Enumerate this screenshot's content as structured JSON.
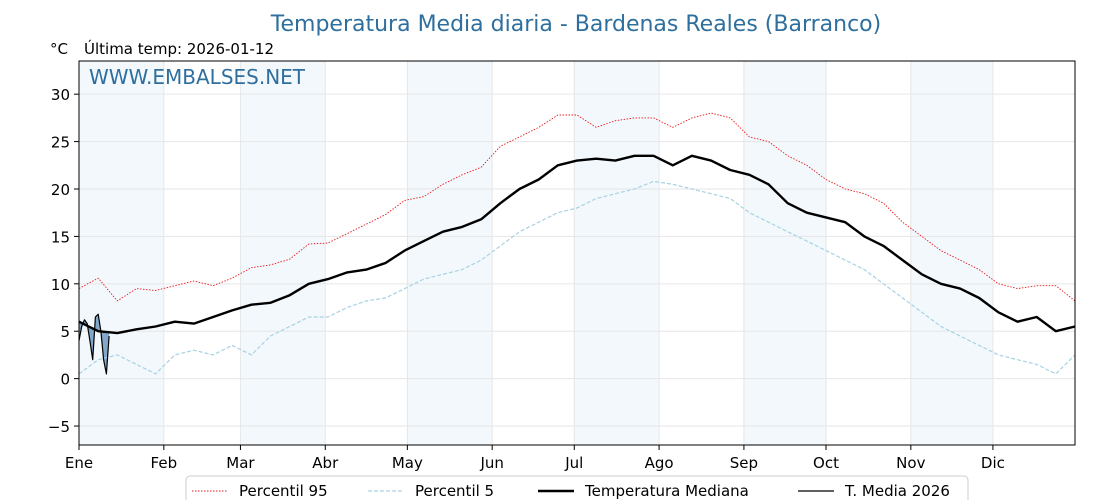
{
  "chart_data": {
    "type": "line",
    "title": "Temperatura Media diaria - Bardenas Reales (Barranco)",
    "unit_label": "°C",
    "last_temp_label": "Última temp: 2026-01-12",
    "watermark": "WWW.EMBALSES.NET",
    "months": [
      "Ene",
      "Feb",
      "Mar",
      "Abr",
      "May",
      "Jun",
      "Jul",
      "Ago",
      "Sep",
      "Oct",
      "Nov",
      "Dic"
    ],
    "y_ticks": [
      -5,
      0,
      5,
      10,
      15,
      20,
      25,
      30
    ],
    "y_tick_labels": [
      "−5",
      "0",
      "5",
      "10",
      "15",
      "20",
      "25",
      "30"
    ],
    "ylim": [
      -7,
      33.5
    ],
    "xlim_days": [
      1,
      365
    ],
    "grid": true,
    "legend_position": "bottom",
    "series": [
      {
        "name": "Percentil 95",
        "color": "#e8191b",
        "style": "dotted",
        "points": [
          [
            1,
            9.5
          ],
          [
            8,
            10.6
          ],
          [
            15,
            8.2
          ],
          [
            22,
            9.5
          ],
          [
            29,
            9.3
          ],
          [
            36,
            9.8
          ],
          [
            43,
            10.3
          ],
          [
            50,
            9.8
          ],
          [
            57,
            10.6
          ],
          [
            64,
            11.7
          ],
          [
            71,
            12.0
          ],
          [
            78,
            12.6
          ],
          [
            85,
            14.2
          ],
          [
            92,
            14.3
          ],
          [
            99,
            15.3
          ],
          [
            106,
            16.3
          ],
          [
            113,
            17.3
          ],
          [
            120,
            18.8
          ],
          [
            127,
            19.2
          ],
          [
            134,
            20.5
          ],
          [
            141,
            21.5
          ],
          [
            148,
            22.3
          ],
          [
            155,
            24.5
          ],
          [
            162,
            25.5
          ],
          [
            169,
            26.5
          ],
          [
            176,
            27.8
          ],
          [
            183,
            27.8
          ],
          [
            190,
            26.5
          ],
          [
            197,
            27.2
          ],
          [
            204,
            27.5
          ],
          [
            211,
            27.5
          ],
          [
            218,
            26.5
          ],
          [
            225,
            27.5
          ],
          [
            232,
            28.0
          ],
          [
            239,
            27.5
          ],
          [
            246,
            25.5
          ],
          [
            253,
            25.0
          ],
          [
            260,
            23.5
          ],
          [
            267,
            22.5
          ],
          [
            274,
            21.0
          ],
          [
            281,
            20.0
          ],
          [
            288,
            19.5
          ],
          [
            295,
            18.5
          ],
          [
            302,
            16.5
          ],
          [
            309,
            15.0
          ],
          [
            316,
            13.5
          ],
          [
            323,
            12.5
          ],
          [
            330,
            11.5
          ],
          [
            337,
            10.0
          ],
          [
            344,
            9.5
          ],
          [
            351,
            9.8
          ],
          [
            358,
            9.8
          ],
          [
            365,
            8.2
          ]
        ]
      },
      {
        "name": "Percentil 5",
        "color": "#a8d2e3",
        "style": "dashed",
        "points": [
          [
            1,
            0.5
          ],
          [
            8,
            2.0
          ],
          [
            15,
            2.5
          ],
          [
            22,
            1.5
          ],
          [
            29,
            0.5
          ],
          [
            36,
            2.5
          ],
          [
            43,
            3.0
          ],
          [
            50,
            2.5
          ],
          [
            57,
            3.5
          ],
          [
            64,
            2.5
          ],
          [
            71,
            4.5
          ],
          [
            78,
            5.5
          ],
          [
            85,
            6.5
          ],
          [
            92,
            6.5
          ],
          [
            99,
            7.5
          ],
          [
            106,
            8.2
          ],
          [
            113,
            8.5
          ],
          [
            120,
            9.5
          ],
          [
            127,
            10.5
          ],
          [
            134,
            11.0
          ],
          [
            141,
            11.5
          ],
          [
            148,
            12.5
          ],
          [
            155,
            14.0
          ],
          [
            162,
            15.5
          ],
          [
            169,
            16.5
          ],
          [
            176,
            17.5
          ],
          [
            183,
            18.0
          ],
          [
            190,
            19.0
          ],
          [
            197,
            19.5
          ],
          [
            204,
            20.0
          ],
          [
            211,
            20.8
          ],
          [
            218,
            20.5
          ],
          [
            225,
            20.0
          ],
          [
            232,
            19.5
          ],
          [
            239,
            19.0
          ],
          [
            246,
            17.5
          ],
          [
            253,
            16.5
          ],
          [
            260,
            15.5
          ],
          [
            267,
            14.5
          ],
          [
            274,
            13.5
          ],
          [
            281,
            12.5
          ],
          [
            288,
            11.5
          ],
          [
            295,
            10.0
          ],
          [
            302,
            8.5
          ],
          [
            309,
            7.0
          ],
          [
            316,
            5.5
          ],
          [
            323,
            4.5
          ],
          [
            330,
            3.5
          ],
          [
            337,
            2.5
          ],
          [
            344,
            2.0
          ],
          [
            351,
            1.5
          ],
          [
            358,
            0.5
          ],
          [
            365,
            2.5
          ]
        ]
      },
      {
        "name": "Temperatura Mediana",
        "color": "#000000",
        "style": "thick",
        "points": [
          [
            1,
            6.0
          ],
          [
            8,
            5.0
          ],
          [
            15,
            4.8
          ],
          [
            22,
            5.2
          ],
          [
            29,
            5.5
          ],
          [
            36,
            6.0
          ],
          [
            43,
            5.8
          ],
          [
            50,
            6.5
          ],
          [
            57,
            7.2
          ],
          [
            64,
            7.8
          ],
          [
            71,
            8.0
          ],
          [
            78,
            8.8
          ],
          [
            85,
            10.0
          ],
          [
            92,
            10.5
          ],
          [
            99,
            11.2
          ],
          [
            106,
            11.5
          ],
          [
            113,
            12.2
          ],
          [
            120,
            13.5
          ],
          [
            127,
            14.5
          ],
          [
            134,
            15.5
          ],
          [
            141,
            16.0
          ],
          [
            148,
            16.8
          ],
          [
            155,
            18.5
          ],
          [
            162,
            20.0
          ],
          [
            169,
            21.0
          ],
          [
            176,
            22.5
          ],
          [
            183,
            23.0
          ],
          [
            190,
            23.2
          ],
          [
            197,
            23.0
          ],
          [
            204,
            23.5
          ],
          [
            211,
            23.5
          ],
          [
            218,
            22.5
          ],
          [
            225,
            23.5
          ],
          [
            232,
            23.0
          ],
          [
            239,
            22.0
          ],
          [
            246,
            21.5
          ],
          [
            253,
            20.5
          ],
          [
            260,
            18.5
          ],
          [
            267,
            17.5
          ],
          [
            274,
            17.0
          ],
          [
            281,
            16.5
          ],
          [
            288,
            15.0
          ],
          [
            295,
            14.0
          ],
          [
            302,
            12.5
          ],
          [
            309,
            11.0
          ],
          [
            316,
            10.0
          ],
          [
            323,
            9.5
          ],
          [
            330,
            8.5
          ],
          [
            337,
            7.0
          ],
          [
            344,
            6.0
          ],
          [
            351,
            6.5
          ],
          [
            358,
            5.0
          ],
          [
            365,
            5.5
          ]
        ]
      },
      {
        "name": "T. Media 2026",
        "color": "#000000",
        "style": "thin",
        "points": [
          [
            1,
            4.0
          ],
          [
            2,
            5.5
          ],
          [
            3,
            6.2
          ],
          [
            4,
            5.8
          ],
          [
            5,
            4.0
          ],
          [
            6,
            2.0
          ],
          [
            7,
            6.5
          ],
          [
            8,
            6.8
          ],
          [
            9,
            5.0
          ],
          [
            10,
            2.0
          ],
          [
            11,
            0.5
          ],
          [
            12,
            4.5
          ]
        ]
      }
    ]
  }
}
